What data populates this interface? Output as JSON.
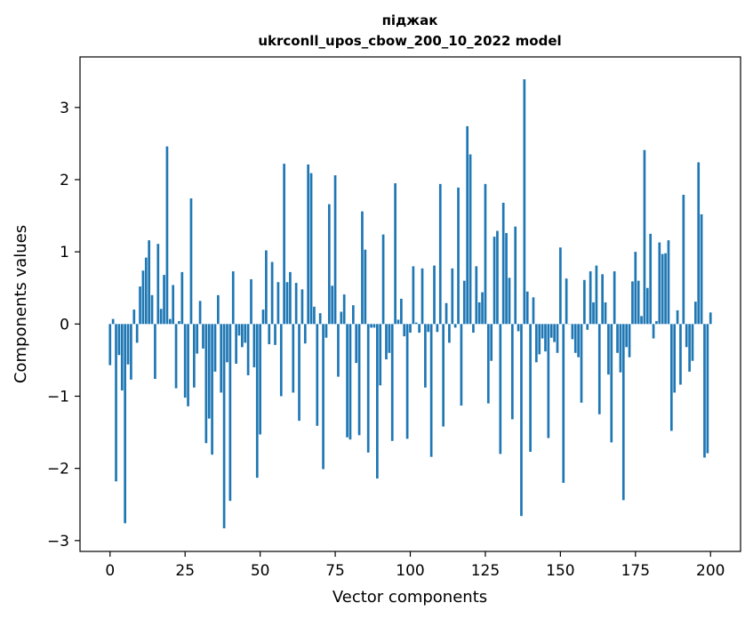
{
  "chart_data": {
    "type": "bar",
    "title": "піджак",
    "subtitle": "ukrconll_upos_cbow_200_10_2022 model",
    "xlabel": "Vector components",
    "ylabel": "Components values",
    "xlim": [
      -10,
      210
    ],
    "ylim": [
      -3.15,
      3.7
    ],
    "xticks": [
      0,
      25,
      50,
      75,
      100,
      125,
      150,
      175,
      200
    ],
    "yticks": [
      -3,
      -2,
      -1,
      0,
      1,
      2,
      3
    ],
    "xtick_labels": [
      "0",
      "25",
      "50",
      "75",
      "100",
      "125",
      "150",
      "175",
      "200"
    ],
    "ytick_labels": [
      "−3",
      "−2",
      "−1",
      "0",
      "1",
      "2",
      "3"
    ],
    "bar_color": "#1f77b4",
    "values": [
      -0.57,
      0.07,
      -2.18,
      -0.43,
      -0.92,
      -2.76,
      -0.56,
      -0.77,
      0.2,
      -0.26,
      0.52,
      0.74,
      0.92,
      1.16,
      0.4,
      -0.76,
      1.11,
      0.21,
      0.68,
      2.46,
      0.07,
      0.54,
      -0.89,
      0.04,
      0.72,
      -1.02,
      -1.14,
      1.74,
      -0.88,
      -0.41,
      0.32,
      -0.34,
      -1.65,
      -1.31,
      -1.81,
      -0.66,
      0.4,
      -0.95,
      -2.83,
      -0.53,
      -2.45,
      0.73,
      -0.55,
      -0.16,
      -0.32,
      -0.26,
      -0.71,
      0.62,
      -0.6,
      -2.13,
      -1.53,
      0.2,
      1.02,
      -0.28,
      0.86,
      -0.29,
      0.58,
      -1.0,
      2.22,
      0.58,
      0.72,
      -0.95,
      0.57,
      -1.34,
      0.48,
      -0.27,
      2.21,
      2.09,
      0.24,
      -1.41,
      0.15,
      -2.01,
      -0.19,
      1.66,
      0.53,
      2.06,
      -0.73,
      0.17,
      0.41,
      -1.57,
      -1.6,
      0.26,
      -0.54,
      -1.54,
      1.56,
      1.03,
      -1.78,
      -0.05,
      -0.05,
      -2.14,
      -0.85,
      1.24,
      -0.49,
      -0.4,
      -1.62,
      1.95,
      0.06,
      0.35,
      -0.17,
      -1.59,
      -0.12,
      0.8,
      0.02,
      -0.12,
      0.77,
      -0.88,
      -0.11,
      -1.84,
      0.81,
      -0.11,
      1.94,
      -1.42,
      0.29,
      -0.26,
      0.77,
      -0.05,
      1.89,
      -1.13,
      0.6,
      2.74,
      2.35,
      -0.12,
      0.8,
      0.3,
      0.44,
      1.94,
      -1.1,
      -0.51,
      1.21,
      1.29,
      -1.8,
      1.68,
      1.26,
      0.64,
      -1.32,
      1.35,
      -0.1,
      -2.66,
      3.39,
      0.45,
      -1.77,
      0.37,
      -0.53,
      -0.42,
      -0.2,
      -0.38,
      -1.58,
      -0.19,
      -0.25,
      -0.4,
      1.06,
      -2.2,
      0.63,
      0.0,
      -0.21,
      -0.4,
      -0.46,
      -1.09,
      0.61,
      -0.08,
      0.73,
      0.3,
      0.81,
      -1.25,
      0.69,
      0.3,
      -0.7,
      -1.64,
      0.73,
      -0.4,
      -0.67,
      -2.44,
      -0.32,
      -0.46,
      0.59,
      1.0,
      0.6,
      0.11,
      2.41,
      0.5,
      1.25,
      -0.2,
      0.04,
      1.13,
      0.97,
      0.98,
      1.16,
      -1.48,
      -0.95,
      0.19,
      -0.84,
      1.79,
      -0.32,
      -0.66,
      -0.51,
      0.31,
      2.24,
      1.52,
      -1.85,
      -1.79,
      0.16
    ]
  }
}
